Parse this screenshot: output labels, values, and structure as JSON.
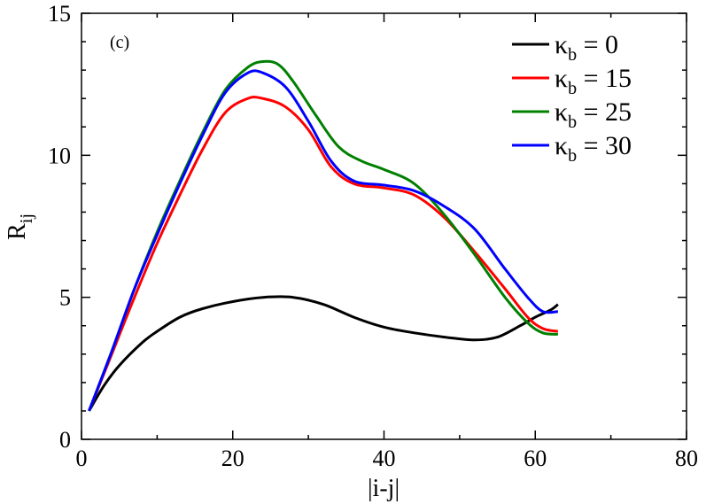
{
  "chart_data": {
    "type": "line",
    "panel_label": "(c)",
    "xlabel": "|i-j|",
    "ylabel": {
      "main": "R",
      "sub": "ij"
    },
    "xlim": [
      0,
      80
    ],
    "ylim": [
      0,
      15
    ],
    "xticks": [
      0,
      20,
      40,
      60,
      80
    ],
    "xtick_labels": [
      "0",
      "20",
      "40",
      "60",
      "80"
    ],
    "yticks": [
      0,
      5,
      10,
      15
    ],
    "ytick_labels": [
      "0",
      "5",
      "10",
      "15"
    ],
    "legend_position": "top-right",
    "series": [
      {
        "name": "κb = 0",
        "legend": {
          "symbol": "κ",
          "sub": "b",
          "rest": " = 0"
        },
        "color": "#000000",
        "x": [
          1,
          3,
          5,
          8,
          10,
          13,
          16,
          20,
          24,
          28,
          32,
          36,
          40,
          44,
          48,
          52,
          55,
          58,
          60,
          62,
          63
        ],
        "y": [
          1.0,
          1.9,
          2.6,
          3.4,
          3.8,
          4.3,
          4.6,
          4.85,
          5.0,
          5.0,
          4.75,
          4.3,
          3.95,
          3.75,
          3.6,
          3.5,
          3.6,
          4.0,
          4.3,
          4.55,
          4.75
        ]
      },
      {
        "name": "κb = 15",
        "legend": {
          "symbol": "κ",
          "sub": "b",
          "rest": " = 15"
        },
        "color": "#ff0000",
        "x": [
          1,
          4,
          7,
          10,
          13,
          16,
          19,
          22,
          24,
          27,
          30,
          33,
          36,
          40,
          44,
          48,
          52,
          56,
          59,
          61,
          63
        ],
        "y": [
          1.0,
          3.0,
          5.0,
          6.9,
          8.6,
          10.2,
          11.5,
          12.0,
          12.0,
          11.7,
          10.9,
          9.6,
          9.0,
          8.85,
          8.6,
          7.8,
          6.6,
          5.3,
          4.3,
          3.9,
          3.8
        ]
      },
      {
        "name": "κb = 25",
        "legend": {
          "symbol": "κ",
          "sub": "b",
          "rest": " = 25"
        },
        "color": "#008000",
        "x": [
          1,
          4,
          7,
          10,
          13,
          16,
          19,
          22,
          24,
          26,
          28,
          31,
          34,
          37,
          40,
          44,
          48,
          52,
          56,
          59,
          61,
          63
        ],
        "y": [
          1.0,
          3.1,
          5.3,
          7.3,
          9.1,
          10.8,
          12.3,
          13.1,
          13.3,
          13.2,
          12.6,
          11.4,
          10.3,
          9.8,
          9.5,
          9.0,
          7.9,
          6.5,
          5.0,
          4.1,
          3.75,
          3.7
        ]
      },
      {
        "name": "κb = 30",
        "legend": {
          "symbol": "κ",
          "sub": "b",
          "rest": " = 30"
        },
        "color": "#0000ff",
        "x": [
          1,
          4,
          7,
          10,
          13,
          16,
          19,
          22,
          24,
          27,
          30,
          33,
          36,
          40,
          44,
          48,
          52,
          56,
          59,
          61,
          63
        ],
        "y": [
          1.0,
          3.1,
          5.3,
          7.2,
          9.0,
          10.7,
          12.2,
          12.9,
          12.9,
          12.4,
          11.2,
          9.8,
          9.1,
          8.95,
          8.75,
          8.2,
          7.4,
          6.0,
          5.0,
          4.5,
          4.5
        ]
      }
    ]
  }
}
